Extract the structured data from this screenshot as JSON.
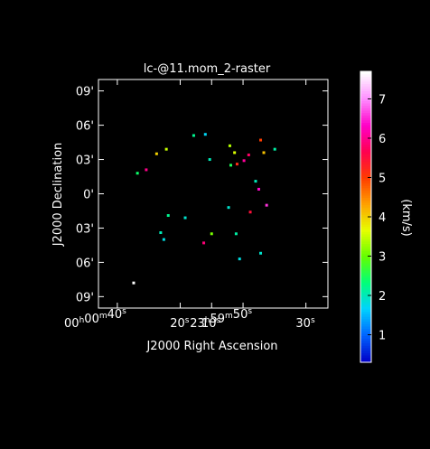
{
  "chart_data": {
    "type": "scatter",
    "title": "lc-@11.mom_2-raster",
    "xlabel": "J2000 Right Ascension",
    "ylabel": "J2000 Declination",
    "x_ticks": [
      {
        "v": 40,
        "major": "00",
        "sup": "h",
        "major2": "00",
        "sup2": "m",
        "minor": "40",
        "sup3": "s"
      },
      {
        "v": 20,
        "minor": "20",
        "sup3": "s"
      },
      {
        "v": 10,
        "minor": "10",
        "sup3": "s"
      },
      {
        "v": 0,
        "major": "23",
        "sup": "h",
        "major2": "59",
        "sup2": "m",
        "minor": "50",
        "sup3": "s"
      },
      {
        "v": -20,
        "minor": "30",
        "sup3": "s"
      }
    ],
    "y_ticks": [
      {
        "v": 9,
        "label": "09'"
      },
      {
        "v": 6,
        "label": "06'"
      },
      {
        "v": 3,
        "label": "03'"
      },
      {
        "v": 0,
        "label": "0'"
      },
      {
        "v": -3,
        "label": "03'"
      },
      {
        "v": -6,
        "label": "06'"
      },
      {
        "v": -9,
        "label": "09'"
      }
    ],
    "xlim": [
      46,
      -27
    ],
    "ylim": [
      -10,
      10
    ],
    "colorbar": {
      "label": "(km/s)",
      "range": [
        0.3,
        7.7
      ],
      "ticks": [
        1,
        2,
        3,
        4,
        5,
        6,
        7
      ],
      "colormap": [
        "#0000c8",
        "#0064ff",
        "#00d2ff",
        "#00ff78",
        "#64ff00",
        "#e6ff00",
        "#ffa000",
        "#ff3c00",
        "#ff0050",
        "#ff00c8",
        "#ff8cff",
        "#ffffff"
      ]
    },
    "points": [
      {
        "x": 27.5,
        "y": 3.5,
        "v": 4.0
      },
      {
        "x": 24.4,
        "y": 3.9,
        "v": 3.5
      },
      {
        "x": 30.8,
        "y": 2.1,
        "v": 6.0
      },
      {
        "x": 33.6,
        "y": 1.8,
        "v": 2.4
      },
      {
        "x": 15.7,
        "y": 5.1,
        "v": 2.2
      },
      {
        "x": 12.0,
        "y": 5.2,
        "v": 1.7
      },
      {
        "x": 10.6,
        "y": 3.0,
        "v": 2.0
      },
      {
        "x": 4.2,
        "y": 4.2,
        "v": 3.4
      },
      {
        "x": 2.7,
        "y": 3.6,
        "v": 3.6
      },
      {
        "x": -0.3,
        "y": 2.9,
        "v": 6.1
      },
      {
        "x": -1.8,
        "y": 3.4,
        "v": 5.8
      },
      {
        "x": 1.9,
        "y": 2.6,
        "v": 5.2
      },
      {
        "x": -6.6,
        "y": 3.6,
        "v": 4.1
      },
      {
        "x": -10.1,
        "y": 3.9,
        "v": 2.1
      },
      {
        "x": -5.6,
        "y": 4.7,
        "v": 5.0
      },
      {
        "x": -4.0,
        "y": 1.1,
        "v": 2.0
      },
      {
        "x": -5.0,
        "y": 0.4,
        "v": 6.4
      },
      {
        "x": -7.5,
        "y": -1.0,
        "v": 6.6
      },
      {
        "x": 3.9,
        "y": 2.5,
        "v": 2.5
      },
      {
        "x": 23.8,
        "y": -1.9,
        "v": 2.2
      },
      {
        "x": 26.2,
        "y": -3.4,
        "v": 2.0
      },
      {
        "x": 25.2,
        "y": -4.0,
        "v": 1.8
      },
      {
        "x": 18.4,
        "y": -2.1,
        "v": 1.9
      },
      {
        "x": 12.5,
        "y": -4.3,
        "v": 5.9
      },
      {
        "x": 10.0,
        "y": -3.5,
        "v": 3.1
      },
      {
        "x": 4.6,
        "y": -1.2,
        "v": 1.9
      },
      {
        "x": 2.2,
        "y": -3.5,
        "v": 2.1
      },
      {
        "x": 1.1,
        "y": -5.7,
        "v": 1.8
      },
      {
        "x": -2.3,
        "y": -1.6,
        "v": 5.5
      },
      {
        "x": -5.6,
        "y": -5.2,
        "v": 1.9
      },
      {
        "x": 34.8,
        "y": -7.8,
        "v": 7.7
      }
    ]
  }
}
